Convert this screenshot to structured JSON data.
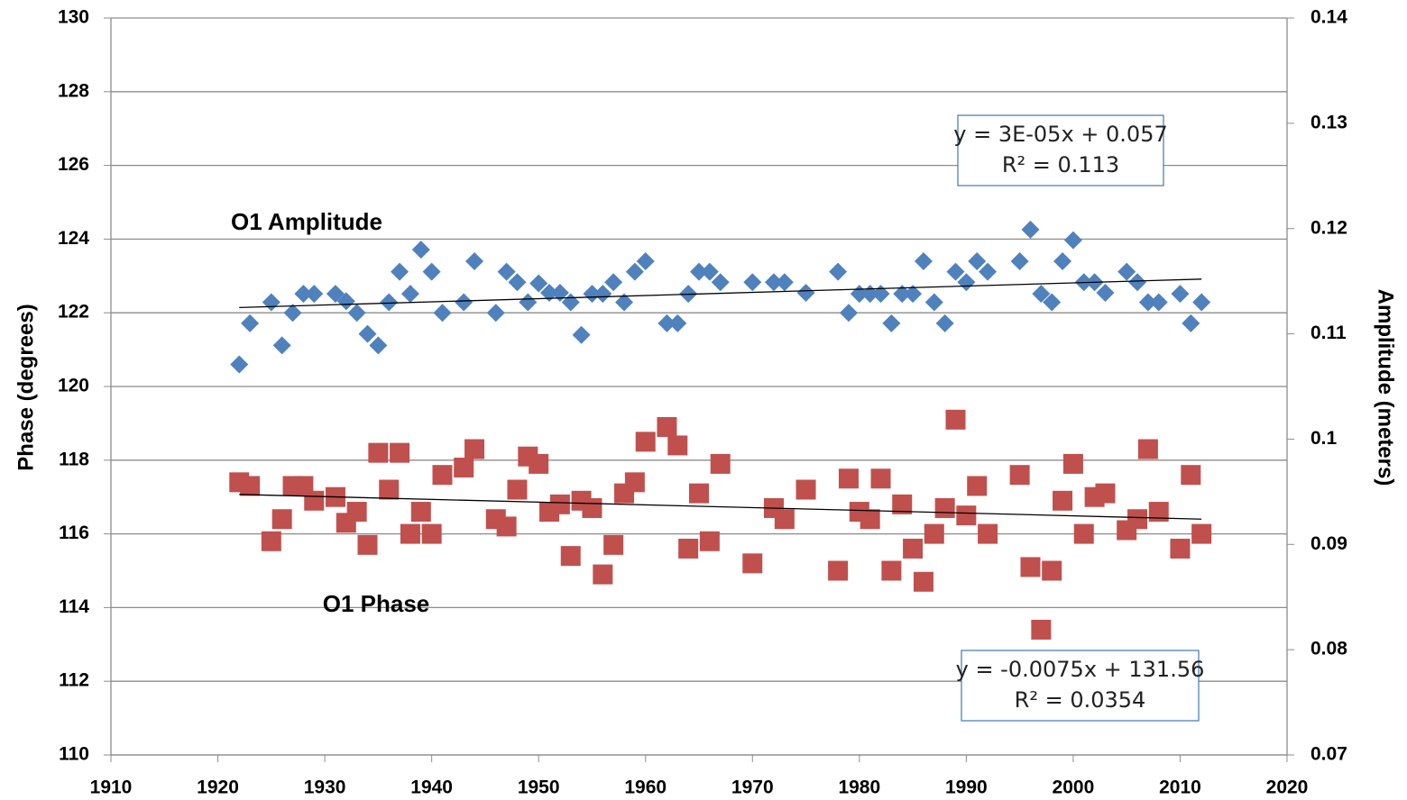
{
  "chart_data": {
    "type": "scatter",
    "y_label": "Phase (degrees)",
    "y2_label": "Amplitude (meters)",
    "xlim": [
      1910,
      2020
    ],
    "xticks": [
      1910,
      1920,
      1930,
      1940,
      1950,
      1960,
      1970,
      1980,
      1990,
      2000,
      2010,
      2020
    ],
    "ylim": [
      110,
      130
    ],
    "yticks": [
      110,
      112,
      114,
      116,
      118,
      120,
      122,
      124,
      126,
      128,
      130
    ],
    "y2lim": [
      0.07,
      0.14
    ],
    "y2ticks": [
      0.07,
      0.08,
      0.09,
      0.1,
      0.11,
      0.12,
      0.13,
      0.14
    ],
    "grid": true,
    "series": [
      {
        "name": "O1 Amplitude",
        "color": "#4f81bd",
        "marker": "diamond",
        "axis": "y2",
        "x": [
          1922,
          1923,
          1925,
          1926,
          1927,
          1928,
          1929,
          1931,
          1932,
          1933,
          1934,
          1935,
          1936,
          1937,
          1938,
          1939,
          1940,
          1941,
          1943,
          1944,
          1946,
          1947,
          1948,
          1949,
          1950,
          1951,
          1952,
          1953,
          1954,
          1955,
          1956,
          1957,
          1958,
          1959,
          1960,
          1962,
          1963,
          1964,
          1965,
          1966,
          1967,
          1970,
          1972,
          1973,
          1975,
          1978,
          1979,
          1980,
          1981,
          1982,
          1983,
          1984,
          1985,
          1986,
          1987,
          1988,
          1989,
          1990,
          1991,
          1992,
          1995,
          1996,
          1997,
          1998,
          1999,
          2000,
          2001,
          2002,
          2003,
          2005,
          2006,
          2007,
          2008,
          2010,
          2011,
          2012
        ],
        "values": [
          0.1071,
          0.111,
          0.113,
          0.1089,
          0.112,
          0.1138,
          0.1138,
          0.1138,
          0.1131,
          0.112,
          0.11,
          0.1089,
          0.113,
          0.1159,
          0.1138,
          0.118,
          0.1159,
          0.112,
          0.113,
          0.1169,
          0.112,
          0.1159,
          0.1149,
          0.113,
          0.1148,
          0.1139,
          0.1139,
          0.113,
          0.1099,
          0.1138,
          0.1138,
          0.1149,
          0.113,
          0.1159,
          0.1169,
          0.111,
          0.111,
          0.1138,
          0.1159,
          0.1159,
          0.1149,
          0.1149,
          0.1149,
          0.1149,
          0.1139,
          0.1159,
          0.112,
          0.1138,
          0.1138,
          0.1138,
          0.111,
          0.1138,
          0.1138,
          0.1169,
          0.113,
          0.111,
          0.1159,
          0.1149,
          0.1169,
          0.1159,
          0.1169,
          0.1199,
          0.1138,
          0.113,
          0.1169,
          0.1189,
          0.1149,
          0.1149,
          0.1139,
          0.1159,
          0.1149,
          0.113,
          0.113,
          0.1138,
          0.111,
          0.113
        ],
        "trendline": {
          "x": [
            1922,
            2012
          ],
          "values": [
            0.1125,
            0.1152
          ]
        },
        "equation": "y = 3E-05x + 0.057",
        "r_squared": "R² = 0.113"
      },
      {
        "name": "O1 Phase",
        "color": "#c0504d",
        "marker": "square",
        "x": [
          1922,
          1923,
          1925,
          1926,
          1927,
          1928,
          1929,
          1931,
          1932,
          1933,
          1934,
          1935,
          1936,
          1937,
          1938,
          1939,
          1940,
          1941,
          1943,
          1944,
          1946,
          1947,
          1948,
          1949,
          1950,
          1951,
          1952,
          1953,
          1954,
          1955,
          1956,
          1957,
          1958,
          1959,
          1960,
          1962,
          1963,
          1964,
          1965,
          1966,
          1967,
          1970,
          1972,
          1973,
          1975,
          1978,
          1979,
          1980,
          1981,
          1982,
          1983,
          1984,
          1985,
          1986,
          1987,
          1988,
          1989,
          1990,
          1991,
          1992,
          1995,
          1996,
          1997,
          1998,
          1999,
          2000,
          2001,
          2002,
          2003,
          2005,
          2006,
          2007,
          2008,
          2010,
          2011,
          2012
        ],
        "values": [
          117.4,
          117.3,
          115.8,
          116.4,
          117.3,
          117.3,
          116.9,
          117.0,
          116.3,
          116.6,
          115.7,
          118.2,
          117.2,
          118.2,
          116.0,
          116.6,
          116.0,
          117.6,
          117.8,
          118.3,
          116.4,
          116.2,
          117.2,
          118.1,
          117.9,
          116.6,
          116.8,
          115.4,
          116.9,
          116.7,
          114.9,
          115.7,
          117.1,
          117.4,
          118.5,
          118.9,
          118.4,
          115.6,
          117.1,
          115.8,
          117.9,
          115.2,
          116.7,
          116.4,
          117.2,
          115.0,
          117.5,
          116.6,
          116.4,
          117.5,
          115.0,
          116.8,
          115.6,
          114.7,
          116.0,
          116.7,
          119.1,
          116.5,
          117.3,
          116.0,
          117.6,
          115.1,
          113.4,
          115.0,
          116.9,
          117.9,
          116.0,
          117.0,
          117.1,
          116.1,
          116.4,
          118.3,
          116.6,
          115.6,
          117.6,
          116.0
        ],
        "trendline": {
          "x": [
            1922,
            2012
          ],
          "values": [
            117.07,
            116.4
          ]
        },
        "equation": "y = -0.0075x + 131.56",
        "r_squared": "R² = 0.0354"
      }
    ]
  }
}
